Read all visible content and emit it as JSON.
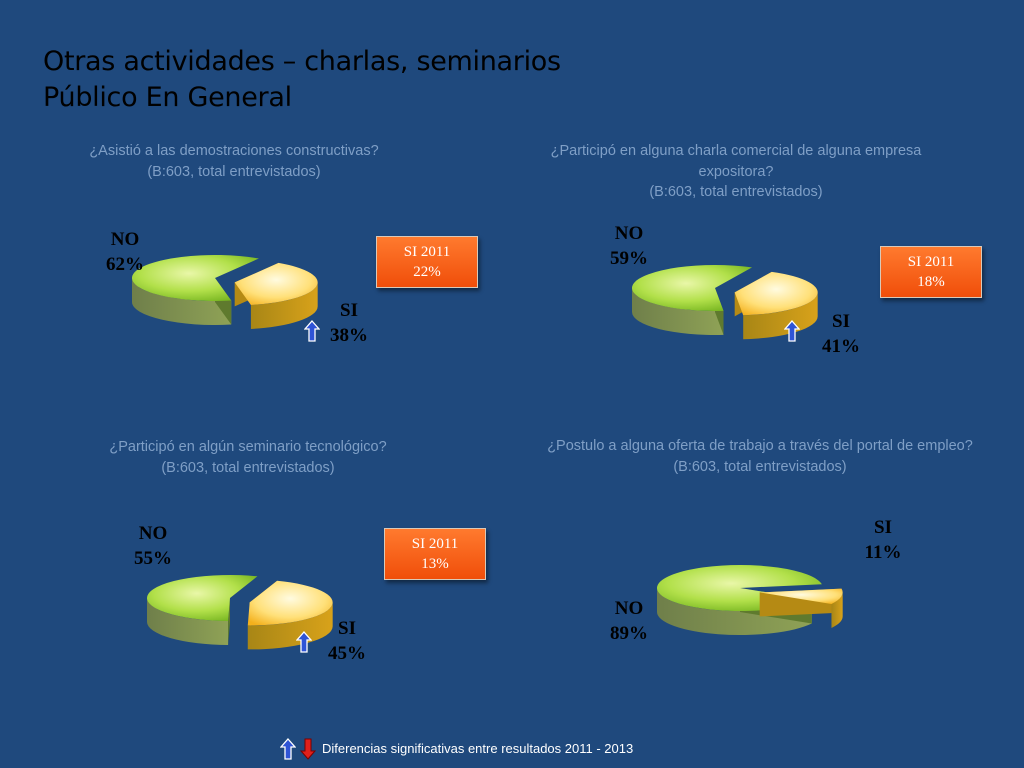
{
  "title": {
    "line1": "Otras actividades – charlas, seminarios",
    "line2": "Público En General"
  },
  "legend": {
    "text": "Diferencias significativas entre resultados 2011 - 2013",
    "up_icon": "blue-up-arrow-icon",
    "down_icon": "red-down-arrow-icon"
  },
  "colors": {
    "background": "#1f497d",
    "no_slice": "#92d050",
    "si_slice": "#ffd966",
    "badge": "#f45a14",
    "up_arrow": "#2f54d6",
    "down_arrow": "#e0201c"
  },
  "charts": [
    {
      "question": [
        "¿Asistió a las demostraciones constructivas?",
        "(B:603, total entrevistados)"
      ],
      "no_label": "NO",
      "no_value_text": "62%",
      "si_label": "SI",
      "si_value_text": "38%",
      "badge_line1": "SI 2011",
      "badge_line2": "22%",
      "significance_arrow": "up"
    },
    {
      "question": [
        "¿Participó en alguna charla comercial de alguna empresa",
        "expositora?",
        "(B:603, total entrevistados)"
      ],
      "no_label": "NO",
      "no_value_text": "59%",
      "si_label": "SI",
      "si_value_text": "41%",
      "badge_line1": "SI 2011",
      "badge_line2": "18%",
      "significance_arrow": "up"
    },
    {
      "question": [
        "¿Participó en algún seminario tecnológico?",
        "(B:603, total entrevistados)"
      ],
      "no_label": "NO",
      "no_value_text": "55%",
      "si_label": "SI",
      "si_value_text": "45%",
      "badge_line1": "SI 2011",
      "badge_line2": "13%",
      "significance_arrow": "up"
    },
    {
      "question": [
        "¿Postulo a alguna oferta de trabajo a través del portal de empleo?",
        "(B:603, total entrevistados)"
      ],
      "no_label": "NO",
      "no_value_text": "89%",
      "si_label": "SI",
      "si_value_text": "11%",
      "significance_arrow": "none"
    }
  ],
  "chart_data": [
    {
      "type": "pie",
      "categories": [
        "NO",
        "SI"
      ],
      "values": [
        62,
        38
      ],
      "unit": "%",
      "comparison": {
        "label": "SI 2011",
        "value": 22
      }
    },
    {
      "type": "pie",
      "categories": [
        "NO",
        "SI"
      ],
      "values": [
        59,
        41
      ],
      "unit": "%",
      "comparison": {
        "label": "SI 2011",
        "value": 18
      }
    },
    {
      "type": "pie",
      "categories": [
        "NO",
        "SI"
      ],
      "values": [
        55,
        45
      ],
      "unit": "%",
      "comparison": {
        "label": "SI 2011",
        "value": 13
      }
    },
    {
      "type": "pie",
      "categories": [
        "NO",
        "SI"
      ],
      "values": [
        89,
        11
      ],
      "unit": "%"
    }
  ]
}
